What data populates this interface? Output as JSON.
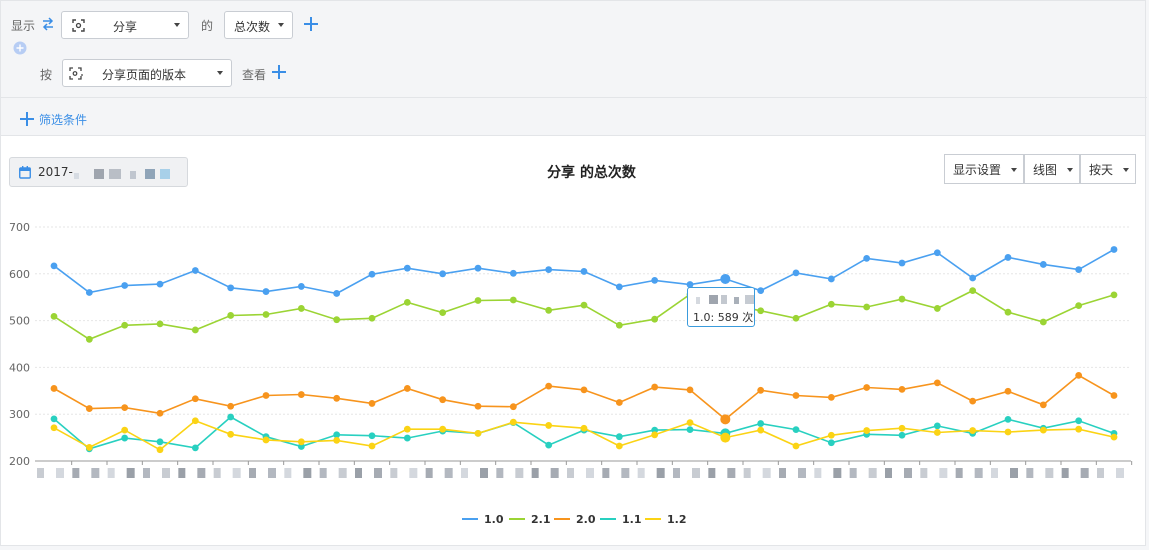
{
  "filter": {
    "show_label": "显示",
    "event_value": "分享",
    "of_label": "的",
    "metric_value": "总次数",
    "by_label": "按",
    "group_value": "分享页面的版本",
    "view_label": "查看",
    "filter_condition_label": "筛选条件"
  },
  "date_picker": {
    "value_prefix": "2017-"
  },
  "toolbar": {
    "display_settings": "显示设置",
    "chart_type": "线图",
    "granularity": "按天"
  },
  "tooltip": {
    "series": "1.0",
    "sep": ":",
    "value": "589",
    "unit": "次"
  },
  "colors": {
    "accent": "#3a8ee6",
    "s1_0": "#4aa0f0",
    "s2_1": "#9bd434",
    "s2_0": "#f7941d",
    "s1_1": "#28d0c0",
    "s1_2": "#fbd314"
  },
  "chart_data": {
    "type": "line",
    "title": "分享 的总次数",
    "title_part1": "分享",
    "title_part2": "的总次数",
    "ylim": [
      200,
      700
    ],
    "yticks": [
      "200",
      "300",
      "400",
      "500",
      "600",
      "700"
    ],
    "grid": true,
    "legend_position": "bottom-center",
    "highlight_index": 19,
    "series": [
      {
        "name": "1.0",
        "color": "#4aa0f0",
        "values": [
          617,
          560,
          575,
          578,
          607,
          570,
          562,
          573,
          558,
          599,
          612,
          600,
          612,
          601,
          609,
          605,
          572,
          586,
          577,
          589,
          564,
          602,
          589,
          633,
          623,
          645,
          591,
          635,
          620,
          609,
          652
        ]
      },
      {
        "name": "2.1",
        "color": "#9bd434",
        "values": [
          509,
          460,
          490,
          493,
          480,
          511,
          513,
          526,
          502,
          505,
          539,
          517,
          543,
          544,
          522,
          533,
          490,
          503,
          556,
          537,
          521,
          505,
          535,
          529,
          546,
          526,
          564,
          518,
          497,
          532,
          555
        ]
      },
      {
        "name": "2.0",
        "color": "#f7941d",
        "values": [
          355,
          312,
          314,
          302,
          333,
          317,
          340,
          342,
          334,
          323,
          355,
          331,
          317,
          316,
          360,
          352,
          325,
          358,
          352,
          289,
          351,
          340,
          336,
          357,
          353,
          367,
          328,
          349,
          320,
          383,
          340
        ]
      },
      {
        "name": "1.1",
        "color": "#28d0c0",
        "values": [
          290,
          226,
          249,
          241,
          228,
          294,
          252,
          231,
          256,
          254,
          249,
          264,
          259,
          282,
          234,
          266,
          252,
          266,
          267,
          259,
          280,
          267,
          239,
          257,
          255,
          275,
          259,
          289,
          270,
          286,
          259
        ]
      },
      {
        "name": "1.2",
        "color": "#fbd314",
        "values": [
          271,
          229,
          266,
          224,
          286,
          257,
          245,
          241,
          244,
          232,
          268,
          268,
          259,
          283,
          276,
          270,
          232,
          256,
          282,
          250,
          266,
          232,
          255,
          265,
          270,
          261,
          265,
          262,
          266,
          268,
          251
        ]
      }
    ]
  }
}
